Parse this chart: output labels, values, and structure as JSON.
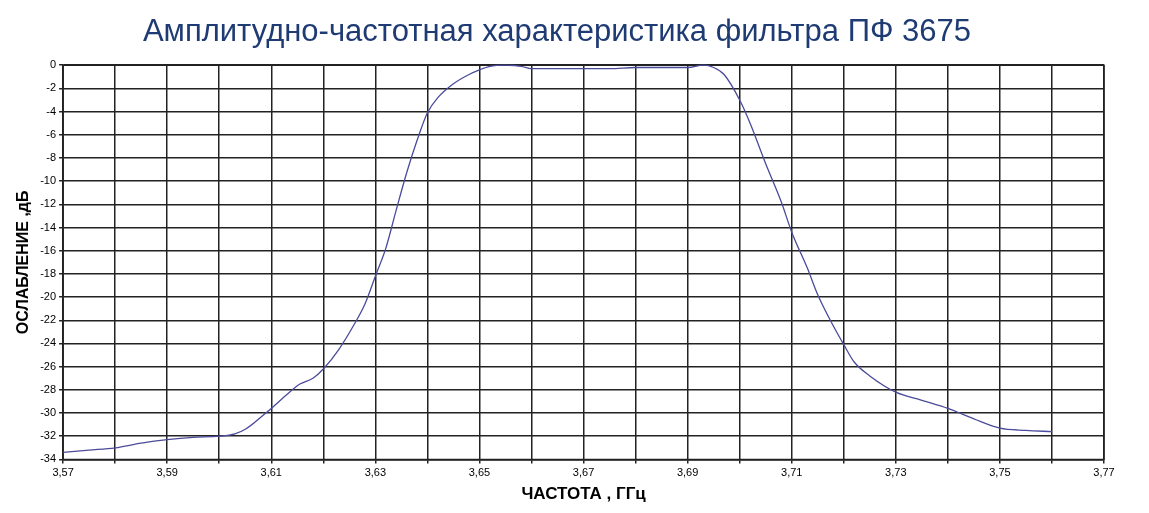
{
  "chart_data": {
    "type": "line",
    "title": "Амплитудно-частотная характеристика фильтра ПФ 3675",
    "xlabel": "ЧАСТОТА , ГГц",
    "ylabel": "ОСЛАБЛЕНИЕ ,дБ",
    "xlim": [
      3.57,
      3.77
    ],
    "xticks": [
      {
        "value": 3.57,
        "label": "3,57"
      },
      {
        "value": 3.58,
        "label": null
      },
      {
        "value": 3.59,
        "label": "3,59"
      },
      {
        "value": 3.6,
        "label": null
      },
      {
        "value": 3.61,
        "label": "3,61"
      },
      {
        "value": 3.62,
        "label": null
      },
      {
        "value": 3.63,
        "label": "3,63"
      },
      {
        "value": 3.64,
        "label": null
      },
      {
        "value": 3.65,
        "label": "3,65"
      },
      {
        "value": 3.66,
        "label": null
      },
      {
        "value": 3.67,
        "label": "3,67"
      },
      {
        "value": 3.68,
        "label": null
      },
      {
        "value": 3.69,
        "label": "3,69"
      },
      {
        "value": 3.7,
        "label": null
      },
      {
        "value": 3.71,
        "label": "3,71"
      },
      {
        "value": 3.72,
        "label": null
      },
      {
        "value": 3.73,
        "label": "3,73"
      },
      {
        "value": 3.74,
        "label": null
      },
      {
        "value": 3.75,
        "label": "3,75"
      },
      {
        "value": 3.76,
        "label": null
      },
      {
        "value": 3.77,
        "label": "3,77"
      }
    ],
    "ylim": [
      -34,
      0
    ],
    "yticks": [
      0,
      -2,
      -4,
      -6,
      -8,
      -10,
      -12,
      -14,
      -16,
      -18,
      -20,
      -22,
      -24,
      -26,
      -28,
      -30,
      -32,
      -34
    ],
    "grid": true,
    "legend": false,
    "marker": "none",
    "line_style": "solid",
    "series": [
      {
        "color": "#4b4b9b",
        "x": [
          3.57,
          3.575,
          3.58,
          3.585,
          3.59,
          3.595,
          3.6,
          3.603,
          3.605,
          3.61,
          3.613,
          3.6155,
          3.618,
          3.62,
          3.623,
          3.626,
          3.628,
          3.63,
          3.632,
          3.634,
          3.636,
          3.638,
          3.64,
          3.642,
          3.645,
          3.648,
          3.65,
          3.652,
          3.655,
          3.658,
          3.66,
          3.665,
          3.67,
          3.675,
          3.68,
          3.685,
          3.69,
          3.693,
          3.695,
          3.697,
          3.7,
          3.702,
          3.705,
          3.708,
          3.71,
          3.713,
          3.715,
          3.718,
          3.72,
          3.722,
          3.725,
          3.73,
          3.735,
          3.74,
          3.745,
          3.75,
          3.755,
          3.76
        ],
        "values": [
          -33.4,
          -33.2,
          -33,
          -32.6,
          -32.3,
          -32.1,
          -32,
          -31.8,
          -31.4,
          -29.6,
          -28.4,
          -27.5,
          -27,
          -26.2,
          -24.5,
          -22.3,
          -20.6,
          -18.2,
          -15.8,
          -12.5,
          -9.3,
          -6.5,
          -4.1,
          -2.8,
          -1.6,
          -0.8,
          -0.4,
          -0.1,
          0,
          -0.1,
          -0.3,
          -0.3,
          -0.3,
          -0.3,
          -0.2,
          -0.2,
          -0.2,
          0,
          -0.2,
          -0.8,
          -3,
          -5,
          -8.5,
          -11.8,
          -14.4,
          -17.5,
          -19.8,
          -22.5,
          -24.1,
          -25.6,
          -26.8,
          -28.2,
          -28.9,
          -29.6,
          -30.5,
          -31.3,
          -31.5,
          -31.6
        ]
      }
    ]
  }
}
